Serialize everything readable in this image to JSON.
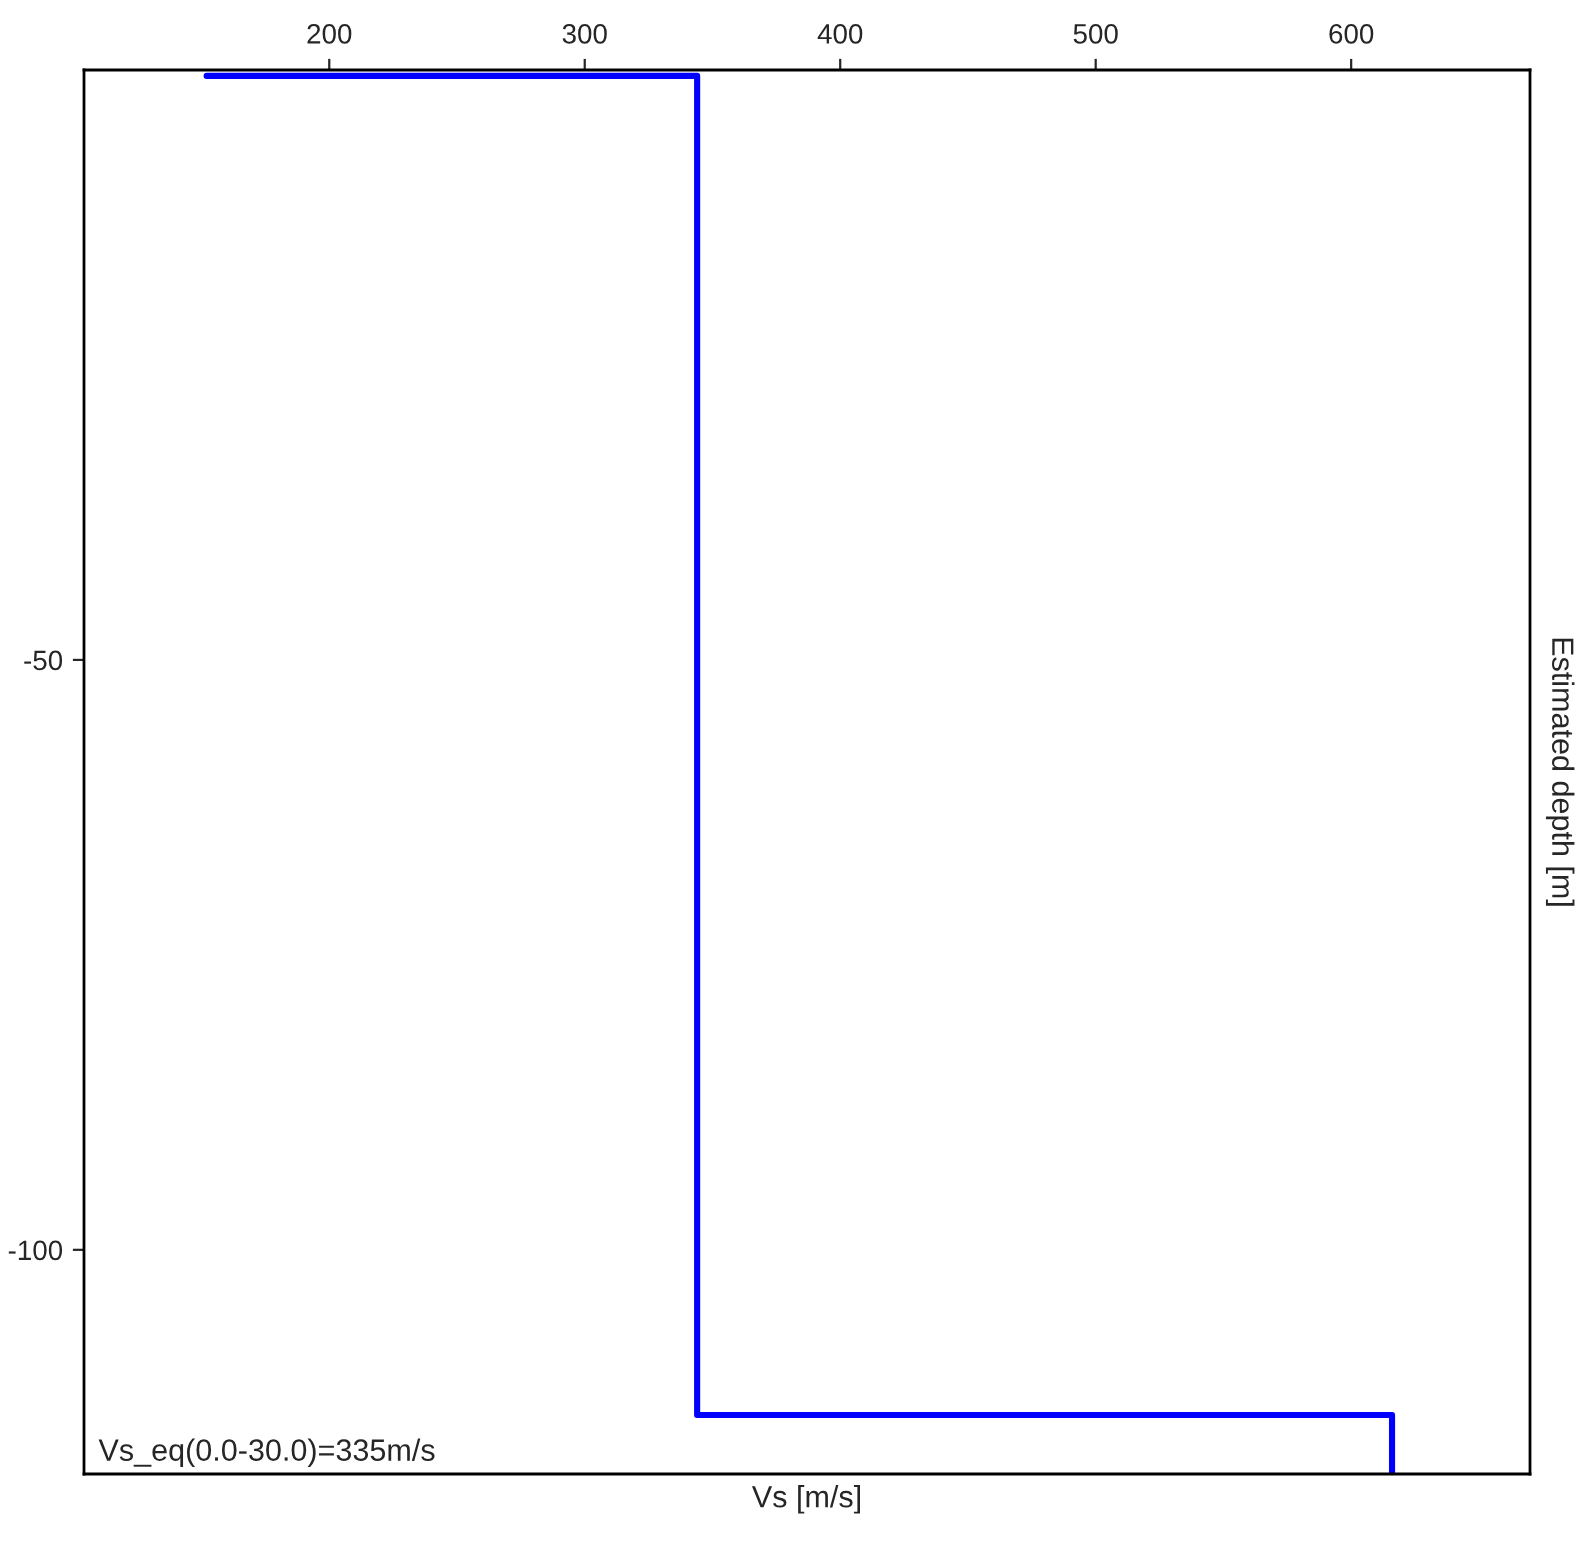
{
  "chart_data": {
    "type": "line",
    "xlabel": "Vs [m/s]",
    "ylabel": "Estimated depth [m]",
    "x": [
      152,
      344,
      344,
      616,
      616
    ],
    "series": [
      {
        "color": "#0000ff",
        "values": [
          -0.5,
          -0.5,
          -114,
          -114,
          -119
        ]
      }
    ],
    "xlim": [
      104,
      670
    ],
    "ylim": [
      -119,
      0
    ],
    "xticks": [
      200,
      300,
      400,
      500,
      600
    ],
    "yticks": [
      -50,
      -100
    ],
    "annotations": [
      "Vs_eq(0.0-30.0)=335m/s"
    ],
    "marker": "none",
    "line_style": "solid"
  }
}
